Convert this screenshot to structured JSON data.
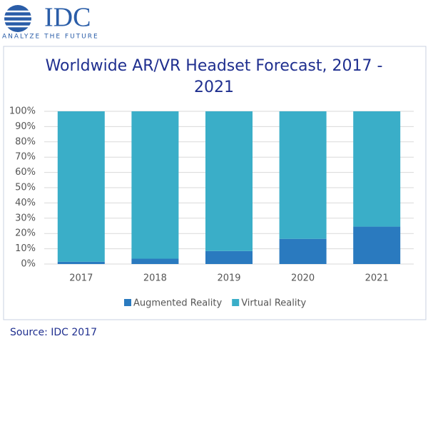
{
  "logo": {
    "name": "IDC",
    "tagline": "ANALYZE THE FUTURE"
  },
  "source": "Source: IDC 2017",
  "chart_data": {
    "type": "stacked_bar",
    "title": "Worldwide AR/VR Headset Forecast, 2017 - 2021",
    "categories": [
      "2017",
      "2018",
      "2019",
      "2020",
      "2021"
    ],
    "series": [
      {
        "name": "Augmented Reality",
        "color": "#2a7abf",
        "values": [
          1.5,
          3.5,
          8.5,
          16.5,
          24.5
        ]
      },
      {
        "name": "Virtual Reality",
        "color": "#3aaec8",
        "values": [
          98.5,
          96.5,
          91.5,
          83.5,
          75.5
        ]
      }
    ],
    "ylim": [
      0,
      100
    ],
    "yticks": [
      {
        "value": 0,
        "label": "0%"
      },
      {
        "value": 10,
        "label": "10%"
      },
      {
        "value": 20,
        "label": "20%"
      },
      {
        "value": 30,
        "label": "30%"
      },
      {
        "value": 40,
        "label": "40%"
      },
      {
        "value": 50,
        "label": "50%"
      },
      {
        "value": 60,
        "label": "60%"
      },
      {
        "value": 70,
        "label": "70%"
      },
      {
        "value": 80,
        "label": "80%"
      },
      {
        "value": 90,
        "label": "90%"
      },
      {
        "value": 100,
        "label": "100%"
      }
    ],
    "grid": true,
    "legend": "bottom"
  }
}
